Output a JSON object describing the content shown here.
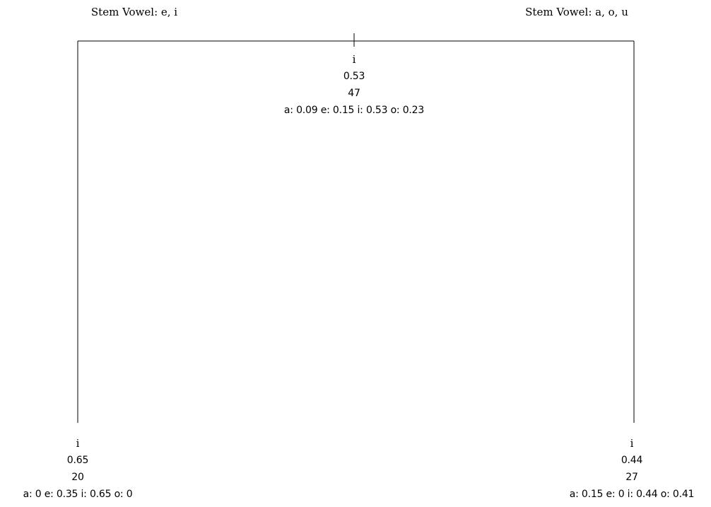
{
  "tree": {
    "split": {
      "left_label": "Stem Vowel: e, i",
      "right_label": "Stem Vowel: a, o, u"
    },
    "root": {
      "class": "i",
      "probability": "0.53",
      "count": "47",
      "distribution": "a: 0.09 e: 0.15 i: 0.53 o: 0.23"
    },
    "left_leaf": {
      "class": "i",
      "probability": "0.65",
      "count": "20",
      "distribution": "a: 0 e: 0.35 i: 0.65 o: 0"
    },
    "right_leaf": {
      "class": "i",
      "probability": "0.44",
      "count": "27",
      "distribution": "a: 0.15 e: 0 i: 0.44 o: 0.41"
    }
  },
  "colors": {
    "line": "#000000",
    "background": "#ffffff"
  }
}
